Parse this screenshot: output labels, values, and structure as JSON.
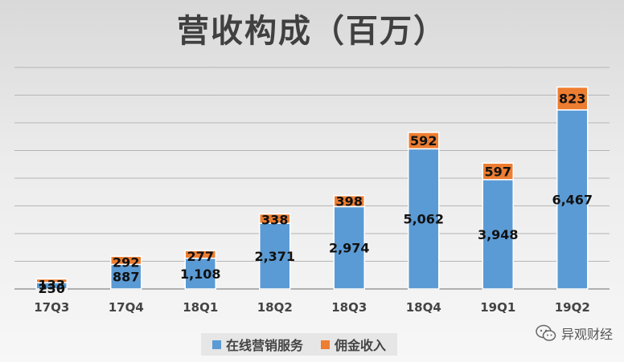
{
  "chart_data": {
    "type": "bar",
    "stacked": true,
    "title": "营收构成（百万）",
    "categories": [
      "17Q3",
      "17Q4",
      "18Q1",
      "18Q2",
      "18Q3",
      "18Q4",
      "19Q1",
      "19Q2"
    ],
    "series": [
      {
        "name": "在线营销服务",
        "values": [
          230,
          887,
          1108,
          2371,
          2974,
          5062,
          3948,
          6467
        ],
        "labels": [
          "230",
          "887",
          "1,108",
          "2,371",
          "2,974",
          "5,062",
          "3,948",
          "6,467"
        ],
        "color": "#5b9bd5"
      },
      {
        "name": "佣金收入",
        "values": [
          133,
          292,
          277,
          338,
          398,
          592,
          597,
          823
        ],
        "labels": [
          "133",
          "292",
          "277",
          "338",
          "398",
          "592",
          "597",
          "823"
        ],
        "color": "#ed7d31"
      }
    ],
    "ylim": [
      0,
      8000
    ],
    "grid": true,
    "legend_position": "bottom"
  },
  "watermark": {
    "text": "异观财经",
    "icon": "wechat-icon"
  }
}
